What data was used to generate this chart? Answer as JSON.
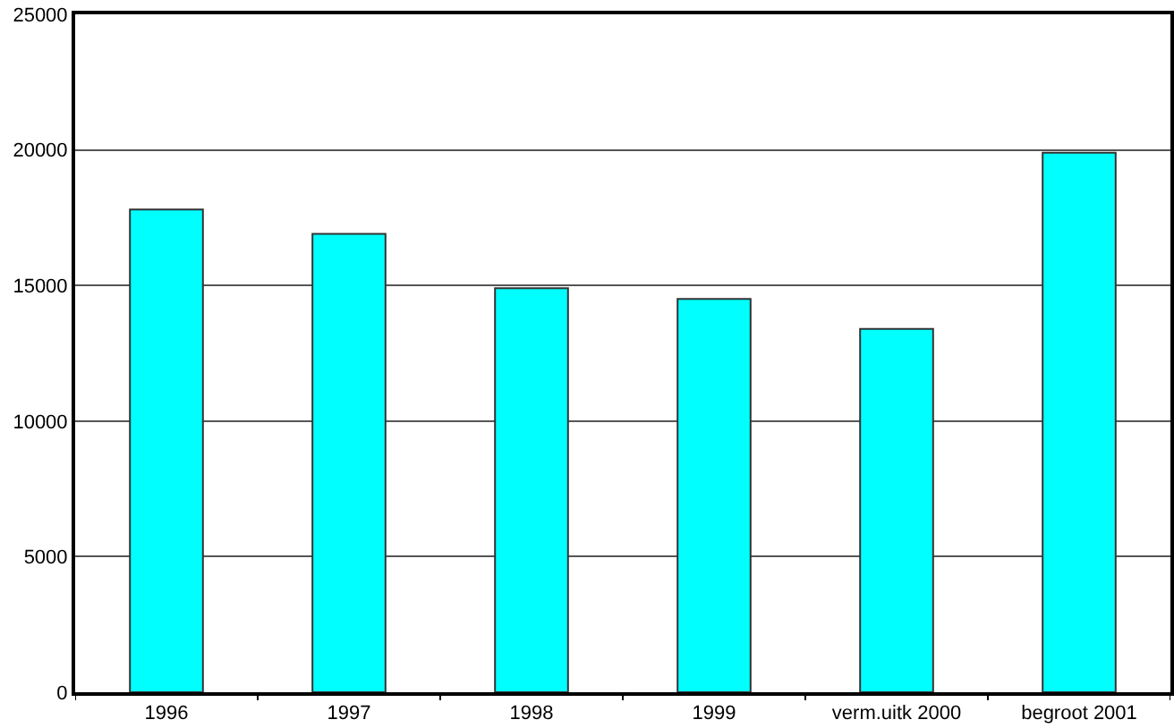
{
  "chart_data": {
    "type": "bar",
    "categories": [
      "1996",
      "1997",
      "1998",
      "1999",
      "verm.uitk 2000",
      "begroot 2001"
    ],
    "values": [
      17800,
      16900,
      14900,
      14500,
      13400,
      19900
    ],
    "color": "#00ffff",
    "ylim": [
      0,
      25000
    ],
    "yticks": [
      0,
      5000,
      10000,
      15000,
      20000,
      25000
    ],
    "grid": "y"
  }
}
